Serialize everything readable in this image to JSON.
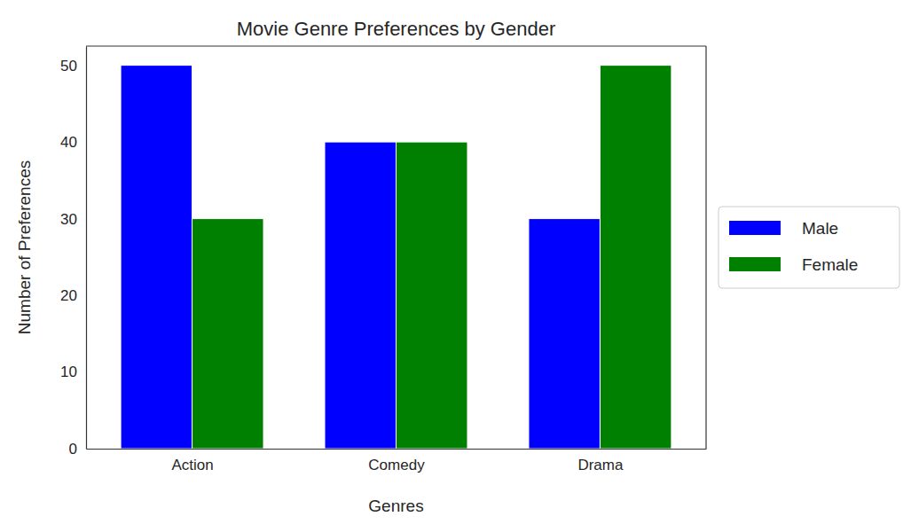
{
  "chart_data": {
    "type": "bar",
    "title": "Movie Genre Preferences by Gender",
    "x_label": "Genres",
    "y_label": "Number of Preferences",
    "categories": [
      "Action",
      "Comedy",
      "Drama"
    ],
    "series": [
      {
        "name": "Male",
        "color": "#0000ff",
        "values": [
          50,
          40,
          30
        ]
      },
      {
        "name": "Female",
        "color": "#008000",
        "values": [
          30,
          40,
          50
        ]
      }
    ],
    "ylim": [
      0,
      52.5
    ],
    "yticks": [
      0,
      10,
      20,
      30,
      40,
      50
    ],
    "grid": false,
    "legend": "right"
  }
}
